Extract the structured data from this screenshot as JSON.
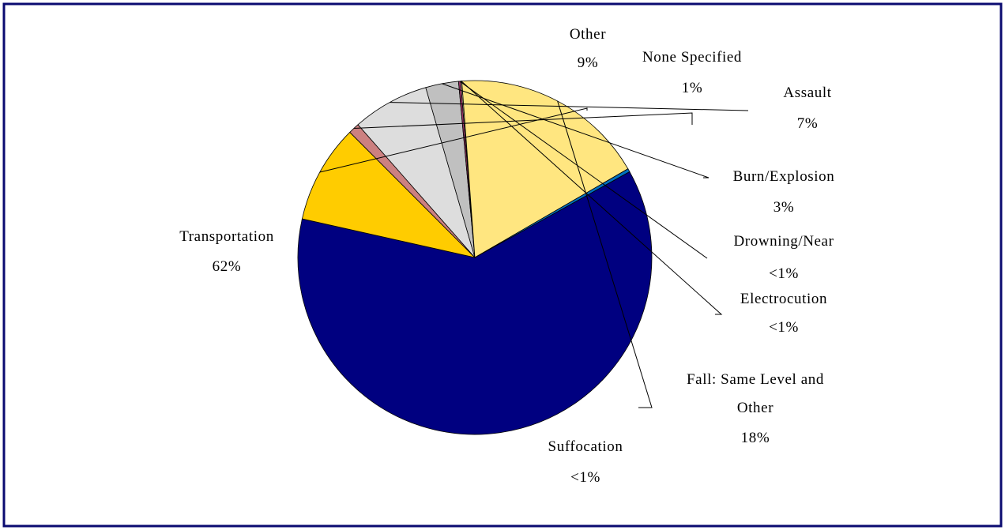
{
  "chart_data": {
    "type": "pie",
    "title": "",
    "slices": [
      {
        "label": "Transportation",
        "pct_label": "62%",
        "value": 61.5,
        "color": "#000080"
      },
      {
        "label": "Other",
        "pct_label": "9%",
        "value": 9,
        "color": "#FFCC00"
      },
      {
        "label": "None Specified",
        "pct_label": "1%",
        "value": 1,
        "color": "#CC8080"
      },
      {
        "label": "Assault",
        "pct_label": "7%",
        "value": 7,
        "color": "#DDDDDD"
      },
      {
        "label": "Burn/Explosion",
        "pct_label": "3%",
        "value": 3,
        "color": "#C0C0C0"
      },
      {
        "label": "Drowning/Near",
        "pct_label": "<1%",
        "value": 0.2,
        "color": "#993366"
      },
      {
        "label": "Electrocution",
        "pct_label": "<1%",
        "value": 0.1,
        "color": "#FFFFCC"
      },
      {
        "label": "Fall: Same Level and Other",
        "pct_label": "18%",
        "value": 17.8,
        "color": "#FFE680"
      },
      {
        "label": "Suffocation",
        "pct_label": "<1%",
        "value": 0.3,
        "color": "#0070C0"
      }
    ],
    "legend": "none"
  }
}
